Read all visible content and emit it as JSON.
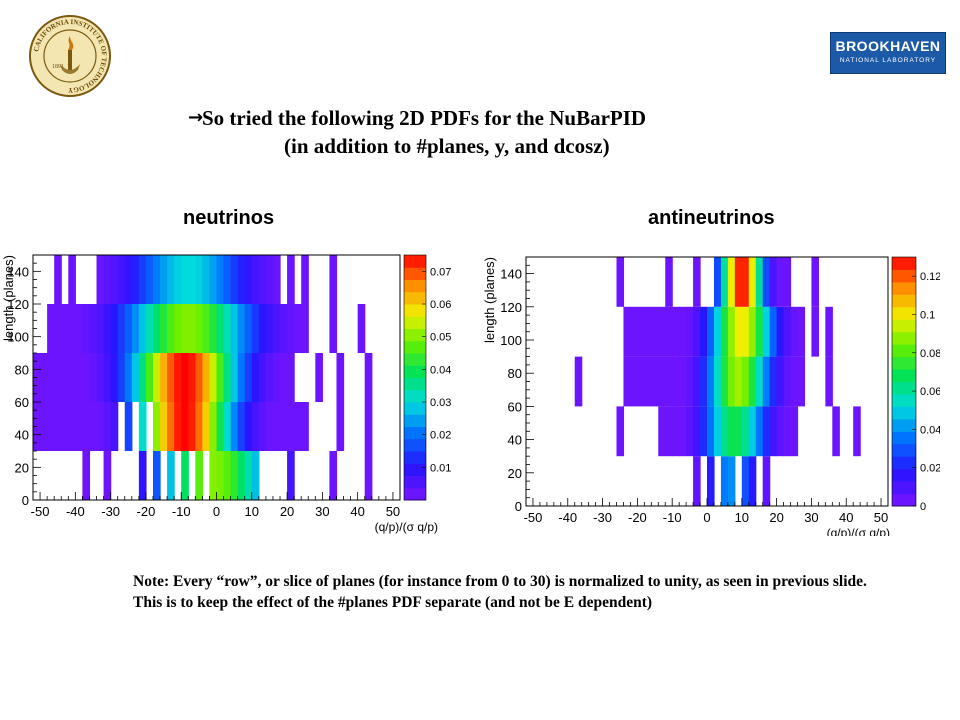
{
  "logos": {
    "caltech_text": "CALIFORNIA INSTITUTE OF TECHNOLOGY",
    "caltech_year": "1891",
    "bnl_main": "BROOKHAVEN",
    "bnl_sub": "NATIONAL LABORATORY"
  },
  "slide": {
    "arrow": "→",
    "title_line1": "So tried the following 2D PDFs for the NuBarPID",
    "title_line2": "(in addition to #planes, y, and dcosz)",
    "note": "Note: Every “row”, or slice of planes (for instance from 0 to 30) is normalized to unity, as seen in previous slide. This is to keep the effect of the #planes PDF separate (and not be E dependent)"
  },
  "chart_data": [
    {
      "type": "heatmap",
      "title": "neutrinos",
      "xlabel": "(q/p)/(σ q/p)",
      "ylabel": "length (planes)",
      "xlim": [
        -52,
        52
      ],
      "ylim": [
        0,
        150
      ],
      "xticks": [
        -50,
        -40,
        -30,
        -20,
        -10,
        0,
        10,
        20,
        30,
        40,
        50
      ],
      "yticks": [
        0,
        20,
        40,
        60,
        80,
        100,
        120,
        140
      ],
      "z_range": [
        0,
        0.075
      ],
      "colorbar_ticks": [
        0.01,
        0.02,
        0.03,
        0.04,
        0.05,
        0.06,
        0.07
      ],
      "colorbar_labels": [
        "0.01",
        "0.02",
        "0.03",
        "0.04",
        "0.05",
        "0.06",
        "0.07"
      ],
      "bin_width_x": 2,
      "rows": [
        {
          "y0": 0,
          "y1": 30,
          "center": -1,
          "sigma": 11,
          "peak": 0.05,
          "x_nonzero_range": [
            -48,
            12
          ],
          "holes": [
            -47,
            -45,
            -43,
            -41,
            -39,
            -35,
            -33,
            -29,
            -27,
            -25,
            -23,
            -19,
            -15,
            -11,
            -7,
            -3
          ],
          "extra": [
            21,
            33,
            43
          ]
        },
        {
          "y0": 30,
          "y1": 60,
          "center": -9,
          "sigma": 9,
          "peak": 0.075,
          "x_nonzero_range": [
            -52,
            26
          ],
          "holes": [
            -27,
            -23,
            -19
          ],
          "extra": [
            35,
            43
          ]
        },
        {
          "y0": 60,
          "y1": 90,
          "center": -9,
          "sigma": 10,
          "peak": 0.075,
          "x_nonzero_range": [
            -52,
            22
          ],
          "holes": [],
          "extra": [
            29,
            35,
            43
          ]
        },
        {
          "y0": 90,
          "y1": 120,
          "center": -8,
          "sigma": 12,
          "peak": 0.05,
          "x_nonzero_range": [
            -48,
            26
          ],
          "holes": [],
          "extra": [
            33,
            41
          ]
        },
        {
          "y0": 120,
          "y1": 150,
          "center": -8,
          "sigma": 11,
          "peak": 0.03,
          "x_nonzero_range": [
            -34,
            18
          ],
          "holes": [],
          "extra": [
            -45,
            -41,
            21,
            25,
            33
          ]
        }
      ]
    },
    {
      "type": "heatmap",
      "title": "antineutrinos",
      "xlabel": "(q/p)/(σ q/p)",
      "ylabel": "length (planes)",
      "xlim": [
        -52,
        52
      ],
      "ylim": [
        0,
        150
      ],
      "xticks": [
        -50,
        -40,
        -30,
        -20,
        -10,
        0,
        10,
        20,
        30,
        40,
        50
      ],
      "yticks": [
        0,
        20,
        40,
        60,
        80,
        100,
        120,
        140
      ],
      "z_range": [
        0,
        0.13
      ],
      "colorbar_ticks": [
        0,
        0.02,
        0.04,
        0.06,
        0.08,
        0.1,
        0.12
      ],
      "colorbar_labels": [
        "0",
        "0.02",
        "0.04",
        "0.06",
        "0.08",
        "0.1",
        "0.12"
      ],
      "bin_width_x": 2,
      "rows": [
        {
          "y0": 0,
          "y1": 30,
          "center": 7,
          "sigma": 5,
          "peak": 0.04,
          "x_nonzero_range": [
            -6,
            18
          ],
          "holes": [
            -5,
            -1,
            3,
            9,
            15
          ],
          "extra": []
        },
        {
          "y0": 30,
          "y1": 60,
          "center": 8,
          "sigma": 6,
          "peak": 0.07,
          "x_nonzero_range": [
            -14,
            26
          ],
          "holes": [],
          "extra": [
            -25,
            37,
            43
          ]
        },
        {
          "y0": 60,
          "y1": 90,
          "center": 9,
          "sigma": 6,
          "peak": 0.09,
          "x_nonzero_range": [
            -24,
            28
          ],
          "holes": [],
          "extra": [
            -37,
            35
          ]
        },
        {
          "y0": 90,
          "y1": 120,
          "center": 10,
          "sigma": 6,
          "peak": 0.1,
          "x_nonzero_range": [
            -24,
            28
          ],
          "holes": [],
          "extra": [
            31,
            35
          ]
        },
        {
          "y0": 120,
          "y1": 150,
          "center": 10,
          "sigma": 4,
          "peak": 0.13,
          "x_nonzero_range": [
            -4,
            24
          ],
          "holes": [
            -1,
            1
          ],
          "extra": [
            -11,
            -25,
            31
          ]
        }
      ]
    }
  ]
}
